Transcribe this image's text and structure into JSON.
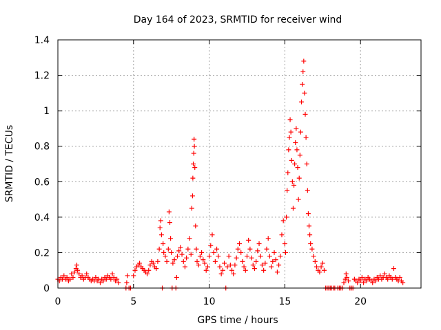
{
  "chart_data": {
    "type": "scatter",
    "title": "Day 164 of 2023, SRMTID for receiver wind",
    "xlabel": "GPS time / hours",
    "ylabel": "SRMTID / TECUs",
    "xlim": [
      0,
      24
    ],
    "ylim": [
      0,
      1.4
    ],
    "xticks": [
      0,
      5,
      10,
      15,
      20
    ],
    "xtick_labels": [
      "0",
      "5",
      "10",
      "15",
      "20"
    ],
    "yticks": [
      0,
      0.2,
      0.4,
      0.6,
      0.8,
      1,
      1.2,
      1.4
    ],
    "ytick_labels": [
      "0",
      "0.2",
      "0.4",
      "0.6",
      "0.8",
      "1",
      "1.2",
      "1.4"
    ],
    "grid": true,
    "marker": "+",
    "series": [
      {
        "name": "SRMTID",
        "color": "#ff0000",
        "points": [
          [
            0.0,
            0.05
          ],
          [
            0.1,
            0.04
          ],
          [
            0.2,
            0.06
          ],
          [
            0.3,
            0.05
          ],
          [
            0.4,
            0.07
          ],
          [
            0.5,
            0.05
          ],
          [
            0.6,
            0.06
          ],
          [
            0.7,
            0.04
          ],
          [
            0.8,
            0.05
          ],
          [
            0.9,
            0.08
          ],
          [
            1.0,
            0.06
          ],
          [
            1.1,
            0.09
          ],
          [
            1.2,
            0.11
          ],
          [
            1.25,
            0.13
          ],
          [
            1.3,
            0.1
          ],
          [
            1.4,
            0.08
          ],
          [
            1.5,
            0.06
          ],
          [
            1.6,
            0.07
          ],
          [
            1.7,
            0.05
          ],
          [
            1.8,
            0.06
          ],
          [
            1.9,
            0.08
          ],
          [
            2.0,
            0.06
          ],
          [
            2.1,
            0.05
          ],
          [
            2.2,
            0.04
          ],
          [
            2.3,
            0.05
          ],
          [
            2.4,
            0.04
          ],
          [
            2.5,
            0.06
          ],
          [
            2.6,
            0.04
          ],
          [
            2.7,
            0.05
          ],
          [
            2.8,
            0.03
          ],
          [
            2.9,
            0.05
          ],
          [
            3.0,
            0.04
          ],
          [
            3.1,
            0.06
          ],
          [
            3.2,
            0.05
          ],
          [
            3.3,
            0.07
          ],
          [
            3.4,
            0.06
          ],
          [
            3.5,
            0.05
          ],
          [
            3.6,
            0.08
          ],
          [
            3.7,
            0.06
          ],
          [
            3.8,
            0.04
          ],
          [
            3.9,
            0.05
          ],
          [
            4.0,
            0.03
          ],
          [
            4.5,
            0.0
          ],
          [
            4.55,
            0.03
          ],
          [
            4.6,
            0.07
          ],
          [
            4.7,
            0.0
          ],
          [
            4.8,
            0.0
          ],
          [
            5.0,
            0.07
          ],
          [
            5.1,
            0.1
          ],
          [
            5.2,
            0.12
          ],
          [
            5.3,
            0.13
          ],
          [
            5.4,
            0.14
          ],
          [
            5.5,
            0.12
          ],
          [
            5.6,
            0.11
          ],
          [
            5.7,
            0.1
          ],
          [
            5.8,
            0.09
          ],
          [
            5.9,
            0.08
          ],
          [
            6.0,
            0.1
          ],
          [
            6.1,
            0.13
          ],
          [
            6.2,
            0.15
          ],
          [
            6.3,
            0.14
          ],
          [
            6.4,
            0.12
          ],
          [
            6.5,
            0.11
          ],
          [
            6.6,
            0.15
          ],
          [
            6.7,
            0.22
          ],
          [
            6.75,
            0.34
          ],
          [
            6.8,
            0.38
          ],
          [
            6.85,
            0.3
          ],
          [
            6.9,
            0.0
          ],
          [
            6.95,
            0.25
          ],
          [
            7.0,
            0.2
          ],
          [
            7.1,
            0.18
          ],
          [
            7.2,
            0.15
          ],
          [
            7.3,
            0.22
          ],
          [
            7.35,
            0.43
          ],
          [
            7.4,
            0.37
          ],
          [
            7.45,
            0.28
          ],
          [
            7.5,
            0.2
          ],
          [
            7.55,
            0.0
          ],
          [
            7.6,
            0.14
          ],
          [
            7.7,
            0.16
          ],
          [
            7.8,
            0.0
          ],
          [
            7.85,
            0.06
          ],
          [
            7.9,
            0.18
          ],
          [
            8.0,
            0.21
          ],
          [
            8.1,
            0.23
          ],
          [
            8.2,
            0.19
          ],
          [
            8.3,
            0.15
          ],
          [
            8.4,
            0.12
          ],
          [
            8.5,
            0.17
          ],
          [
            8.6,
            0.22
          ],
          [
            8.7,
            0.28
          ],
          [
            8.8,
            0.19
          ],
          [
            8.85,
            0.45
          ],
          [
            8.9,
            0.52
          ],
          [
            8.92,
            0.62
          ],
          [
            8.95,
            0.7
          ],
          [
            8.98,
            0.76
          ],
          [
            9.0,
            0.84
          ],
          [
            9.02,
            0.8
          ],
          [
            9.05,
            0.68
          ],
          [
            9.1,
            0.35
          ],
          [
            9.15,
            0.22
          ],
          [
            9.2,
            0.15
          ],
          [
            9.3,
            0.13
          ],
          [
            9.4,
            0.18
          ],
          [
            9.5,
            0.2
          ],
          [
            9.6,
            0.16
          ],
          [
            9.7,
            0.14
          ],
          [
            9.8,
            0.1
          ],
          [
            9.9,
            0.12
          ],
          [
            10.0,
            0.18
          ],
          [
            10.1,
            0.24
          ],
          [
            10.2,
            0.3
          ],
          [
            10.3,
            0.2
          ],
          [
            10.4,
            0.15
          ],
          [
            10.5,
            0.22
          ],
          [
            10.6,
            0.18
          ],
          [
            10.7,
            0.12
          ],
          [
            10.8,
            0.08
          ],
          [
            10.9,
            0.1
          ],
          [
            11.0,
            0.14
          ],
          [
            11.1,
            0.0
          ],
          [
            11.2,
            0.12
          ],
          [
            11.3,
            0.18
          ],
          [
            11.4,
            0.13
          ],
          [
            11.5,
            0.1
          ],
          [
            11.6,
            0.08
          ],
          [
            11.7,
            0.13
          ],
          [
            11.8,
            0.17
          ],
          [
            11.9,
            0.22
          ],
          [
            12.0,
            0.25
          ],
          [
            12.1,
            0.2
          ],
          [
            12.2,
            0.15
          ],
          [
            12.3,
            0.12
          ],
          [
            12.4,
            0.1
          ],
          [
            12.5,
            0.18
          ],
          [
            12.6,
            0.27
          ],
          [
            12.7,
            0.22
          ],
          [
            12.8,
            0.17
          ],
          [
            12.9,
            0.13
          ],
          [
            13.0,
            0.11
          ],
          [
            13.1,
            0.15
          ],
          [
            13.2,
            0.21
          ],
          [
            13.3,
            0.25
          ],
          [
            13.4,
            0.18
          ],
          [
            13.5,
            0.13
          ],
          [
            13.6,
            0.1
          ],
          [
            13.7,
            0.14
          ],
          [
            13.8,
            0.22
          ],
          [
            13.9,
            0.28
          ],
          [
            14.0,
            0.18
          ],
          [
            14.1,
            0.12
          ],
          [
            14.2,
            0.15
          ],
          [
            14.3,
            0.2
          ],
          [
            14.4,
            0.16
          ],
          [
            14.5,
            0.09
          ],
          [
            14.6,
            0.13
          ],
          [
            14.7,
            0.18
          ],
          [
            14.8,
            0.3
          ],
          [
            14.9,
            0.38
          ],
          [
            15.0,
            0.25
          ],
          [
            15.05,
            0.2
          ],
          [
            15.1,
            0.4
          ],
          [
            15.15,
            0.55
          ],
          [
            15.2,
            0.65
          ],
          [
            15.25,
            0.78
          ],
          [
            15.3,
            0.85
          ],
          [
            15.35,
            0.95
          ],
          [
            15.4,
            0.88
          ],
          [
            15.45,
            0.72
          ],
          [
            15.5,
            0.6
          ],
          [
            15.55,
            0.45
          ],
          [
            15.6,
            0.58
          ],
          [
            15.65,
            0.7
          ],
          [
            15.7,
            0.82
          ],
          [
            15.75,
            0.9
          ],
          [
            15.8,
            0.78
          ],
          [
            15.85,
            0.68
          ],
          [
            15.9,
            0.5
          ],
          [
            15.95,
            0.62
          ],
          [
            16.0,
            0.75
          ],
          [
            16.05,
            0.88
          ],
          [
            16.1,
            1.05
          ],
          [
            16.15,
            1.15
          ],
          [
            16.2,
            1.22
          ],
          [
            16.25,
            1.28
          ],
          [
            16.3,
            1.1
          ],
          [
            16.35,
            0.98
          ],
          [
            16.4,
            0.85
          ],
          [
            16.45,
            0.7
          ],
          [
            16.5,
            0.55
          ],
          [
            16.55,
            0.42
          ],
          [
            16.6,
            0.35
          ],
          [
            16.65,
            0.3
          ],
          [
            16.7,
            0.25
          ],
          [
            16.8,
            0.22
          ],
          [
            16.9,
            0.18
          ],
          [
            17.0,
            0.15
          ],
          [
            17.1,
            0.12
          ],
          [
            17.2,
            0.1
          ],
          [
            17.3,
            0.09
          ],
          [
            17.4,
            0.12
          ],
          [
            17.5,
            0.14
          ],
          [
            17.6,
            0.1
          ],
          [
            17.7,
            0.0
          ],
          [
            17.8,
            0.0
          ],
          [
            17.9,
            0.0
          ],
          [
            18.0,
            0.0
          ],
          [
            18.1,
            0.0
          ],
          [
            18.2,
            0.0
          ],
          [
            18.3,
            0.0
          ],
          [
            18.5,
            0.0
          ],
          [
            18.6,
            0.0
          ],
          [
            18.7,
            0.0
          ],
          [
            18.8,
            0.0
          ],
          [
            18.9,
            0.03
          ],
          [
            19.0,
            0.05
          ],
          [
            19.05,
            0.08
          ],
          [
            19.1,
            0.06
          ],
          [
            19.2,
            0.04
          ],
          [
            19.3,
            0.0
          ],
          [
            19.4,
            0.0
          ],
          [
            19.5,
            0.0
          ],
          [
            19.6,
            0.05
          ],
          [
            19.7,
            0.04
          ],
          [
            19.8,
            0.03
          ],
          [
            19.9,
            0.05
          ],
          [
            20.0,
            0.04
          ],
          [
            20.1,
            0.06
          ],
          [
            20.2,
            0.03
          ],
          [
            20.3,
            0.05
          ],
          [
            20.4,
            0.04
          ],
          [
            20.5,
            0.06
          ],
          [
            20.6,
            0.05
          ],
          [
            20.7,
            0.04
          ],
          [
            20.8,
            0.03
          ],
          [
            20.9,
            0.05
          ],
          [
            21.0,
            0.04
          ],
          [
            21.1,
            0.06
          ],
          [
            21.2,
            0.05
          ],
          [
            21.3,
            0.07
          ],
          [
            21.4,
            0.05
          ],
          [
            21.5,
            0.06
          ],
          [
            21.6,
            0.08
          ],
          [
            21.7,
            0.06
          ],
          [
            21.8,
            0.05
          ],
          [
            21.9,
            0.07
          ],
          [
            22.0,
            0.06
          ],
          [
            22.1,
            0.05
          ],
          [
            22.2,
            0.11
          ],
          [
            22.3,
            0.06
          ],
          [
            22.4,
            0.05
          ],
          [
            22.5,
            0.04
          ],
          [
            22.6,
            0.06
          ],
          [
            22.7,
            0.04
          ],
          [
            22.8,
            0.03
          ]
        ]
      }
    ]
  }
}
